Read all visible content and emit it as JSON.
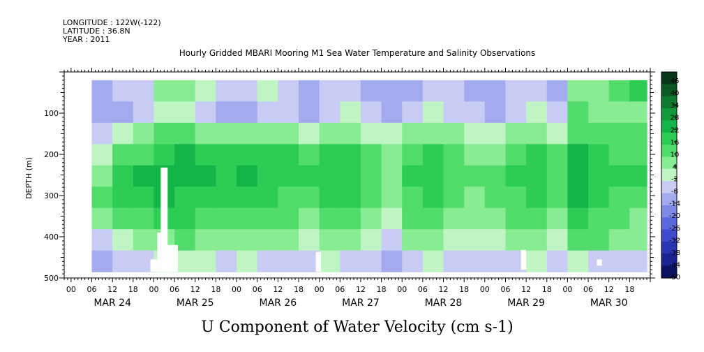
{
  "header": {
    "longitude": "LONGITUDE : 122W(-122)",
    "latitude": "LATITUDE : 36.8N",
    "year": "YEAR : 2011"
  },
  "chart_data": {
    "type": "heatmap",
    "title": "Hourly Gridded MBARI Mooring M1 Sea Water Temperature and Salinity Observations",
    "xlabel": "U Component of Water Velocity (cm s-1)",
    "ylabel": "DEPTH (m)",
    "ylim": [
      500,
      0
    ],
    "y_ticks": [
      100,
      200,
      300,
      400,
      500
    ],
    "x_hour_labels": [
      "00",
      "06",
      "12",
      "18",
      "00",
      "06",
      "12",
      "18",
      "00",
      "06",
      "12",
      "18",
      "00",
      "06",
      "12",
      "18",
      "00",
      "06",
      "12",
      "18",
      "00",
      "06",
      "12",
      "18",
      "00",
      "06",
      "12",
      "18"
    ],
    "x_day_labels": [
      "MAR 24",
      "MAR 25",
      "MAR 26",
      "MAR 27",
      "MAR 28",
      "MAR 29",
      "MAR 30"
    ],
    "data_extent": {
      "start": "MAR 24 06:00",
      "end": "MAR 30 23:00",
      "depth_top": 20,
      "depth_bottom": 485
    },
    "colorbar": {
      "labels": [
        "46",
        "40",
        "34",
        "28",
        "22",
        "16",
        "10",
        "4",
        "-2",
        "-8",
        "-14",
        "-20",
        "-26",
        "-32",
        "-38",
        "-44",
        "-50"
      ],
      "colors": [
        "#07371a",
        "#0b5a24",
        "#0e7a30",
        "#109a3a",
        "#14b548",
        "#2ccc55",
        "#52dc6c",
        "#88ec92",
        "#bff5c2",
        "#c8ccf4",
        "#a4aaee",
        "#7f89e6",
        "#5c67dc",
        "#3f4bcc",
        "#2a35b4",
        "#1a2390",
        "#0b1260"
      ]
    },
    "bands": [
      {
        "start": "MAR 24 06:00",
        "end": "MAR 24 12:00",
        "rows": [
          -10,
          -14,
          -8,
          2,
          8,
          10,
          6,
          -6,
          -12
        ]
      },
      {
        "start": "MAR 24 12:00",
        "end": "MAR 24 18:00",
        "rows": [
          -6,
          -10,
          -2,
          12,
          18,
          16,
          10,
          2,
          -8
        ]
      },
      {
        "start": "MAR 24 18:00",
        "end": "MAR 25 00:00",
        "rows": [
          -4,
          -8,
          4,
          14,
          22,
          20,
          14,
          6,
          -4
        ]
      },
      {
        "start": "MAR 25 00:00",
        "end": "MAR 25 06:00",
        "rows": [
          6,
          2,
          10,
          20,
          26,
          22,
          16,
          8,
          -2
        ]
      },
      {
        "start": "MAR 25 06:00",
        "end": "MAR 25 12:00",
        "rows": [
          4,
          -2,
          10,
          22,
          24,
          20,
          16,
          10,
          2
        ]
      },
      {
        "start": "MAR 25 12:00",
        "end": "MAR 25 18:00",
        "rows": [
          -2,
          -6,
          8,
          20,
          22,
          18,
          14,
          8,
          -2
        ]
      },
      {
        "start": "MAR 25 18:00",
        "end": "MAR 26 00:00",
        "rows": [
          -8,
          -12,
          4,
          16,
          20,
          16,
          12,
          6,
          -4
        ]
      },
      {
        "start": "MAR 26 00:00",
        "end": "MAR 26 06:00",
        "rows": [
          -6,
          -10,
          6,
          18,
          22,
          20,
          14,
          8,
          -2
        ]
      },
      {
        "start": "MAR 26 06:00",
        "end": "MAR 26 12:00",
        "rows": [
          2,
          -4,
          8,
          18,
          20,
          16,
          10,
          4,
          -6
        ]
      },
      {
        "start": "MAR 26 12:00",
        "end": "MAR 26 18:00",
        "rows": [
          -6,
          -8,
          6,
          16,
          18,
          14,
          10,
          4,
          -4
        ]
      },
      {
        "start": "MAR 26 18:00",
        "end": "MAR 27 00:00",
        "rows": [
          -10,
          -12,
          2,
          14,
          18,
          14,
          8,
          2,
          -8
        ]
      },
      {
        "start": "MAR 27 00:00",
        "end": "MAR 27 06:00",
        "rows": [
          -8,
          -6,
          6,
          16,
          20,
          18,
          12,
          6,
          -2
        ]
      },
      {
        "start": "MAR 27 06:00",
        "end": "MAR 27 12:00",
        "rows": [
          -4,
          -2,
          8,
          16,
          18,
          16,
          10,
          4,
          -4
        ]
      },
      {
        "start": "MAR 27 12:00",
        "end": "MAR 27 18:00",
        "rows": [
          -10,
          -8,
          2,
          10,
          14,
          12,
          8,
          2,
          -8
        ]
      },
      {
        "start": "MAR 27 18:00",
        "end": "MAR 28 00:00",
        "rows": [
          -14,
          -10,
          -2,
          4,
          8,
          6,
          2,
          -6,
          -12
        ]
      },
      {
        "start": "MAR 28 00:00",
        "end": "MAR 28 06:00",
        "rows": [
          -10,
          -6,
          4,
          12,
          16,
          14,
          10,
          4,
          -6
        ]
      },
      {
        "start": "MAR 28 06:00",
        "end": "MAR 28 12:00",
        "rows": [
          -4,
          0,
          8,
          16,
          18,
          16,
          12,
          6,
          -2
        ]
      },
      {
        "start": "MAR 28 12:00",
        "end": "MAR 28 18:00",
        "rows": [
          -8,
          -4,
          4,
          12,
          14,
          12,
          8,
          2,
          -6
        ]
      },
      {
        "start": "MAR 28 18:00",
        "end": "MAR 29 00:00",
        "rows": [
          -10,
          -8,
          2,
          8,
          10,
          8,
          4,
          -2,
          -8
        ]
      },
      {
        "start": "MAR 29 00:00",
        "end": "MAR 29 06:00",
        "rows": [
          -12,
          -10,
          0,
          6,
          10,
          10,
          6,
          0,
          -8
        ]
      },
      {
        "start": "MAR 29 06:00",
        "end": "MAR 29 12:00",
        "rows": [
          -8,
          -6,
          6,
          14,
          16,
          14,
          10,
          4,
          -4
        ]
      },
      {
        "start": "MAR 29 12:00",
        "end": "MAR 29 18:00",
        "rows": [
          -6,
          -2,
          8,
          16,
          18,
          16,
          12,
          8,
          -2
        ]
      },
      {
        "start": "MAR 29 18:00",
        "end": "MAR 30 00:00",
        "rows": [
          -10,
          -8,
          2,
          10,
          14,
          12,
          8,
          2,
          -6
        ]
      },
      {
        "start": "MAR 30 00:00",
        "end": "MAR 30 06:00",
        "rows": [
          8,
          10,
          14,
          22,
          26,
          22,
          18,
          12,
          -2
        ]
      },
      {
        "start": "MAR 30 06:00",
        "end": "MAR 30 12:00",
        "rows": [
          4,
          6,
          12,
          18,
          20,
          16,
          14,
          10,
          -4
        ]
      },
      {
        "start": "MAR 30 12:00",
        "end": "MAR 30 18:00",
        "rows": [
          12,
          6,
          10,
          14,
          16,
          14,
          10,
          6,
          -6
        ]
      },
      {
        "start": "MAR 30 18:00",
        "end": "MAR 30 23:00",
        "rows": [
          16,
          8,
          10,
          14,
          16,
          12,
          8,
          4,
          -4
        ]
      }
    ],
    "missing_data": [
      {
        "start": "MAR 24 23:00",
        "end": "MAR 25 01:00",
        "depth_top": 455,
        "depth_bottom": 485
      },
      {
        "start": "MAR 25 01:00",
        "end": "MAR 25 02:00",
        "depth_top": 390,
        "depth_bottom": 485
      },
      {
        "start": "MAR 25 02:00",
        "end": "MAR 25 04:00",
        "depth_top": 232,
        "depth_bottom": 485
      },
      {
        "start": "MAR 25 04:00",
        "end": "MAR 25 07:00",
        "depth_top": 420,
        "depth_bottom": 485
      },
      {
        "start": "MAR 26 23:00",
        "end": "MAR 27 00:30",
        "depth_top": 437,
        "depth_bottom": 485
      },
      {
        "start": "MAR 29 10:30",
        "end": "MAR 29 12:00",
        "depth_top": 432,
        "depth_bottom": 480
      },
      {
        "start": "MAR 30 08:30",
        "end": "MAR 30 10:00",
        "depth_top": 455,
        "depth_bottom": 470
      }
    ]
  }
}
